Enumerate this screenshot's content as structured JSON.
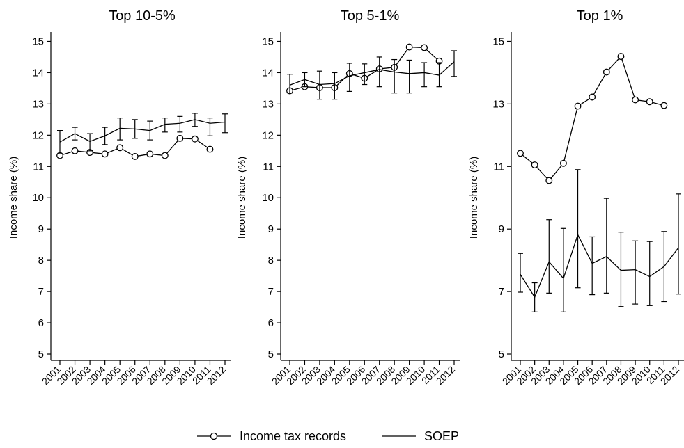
{
  "chart_data": [
    {
      "type": "line",
      "title": "Top 10-5%",
      "ylabel": "Income share (%)",
      "xlabel": "",
      "x": [
        2001,
        2002,
        2003,
        2004,
        2005,
        2006,
        2007,
        2008,
        2009,
        2010,
        2011,
        2012
      ],
      "ylim": [
        4.8,
        15.3
      ],
      "yticks": [
        5,
        6,
        7,
        8,
        9,
        10,
        11,
        12,
        13,
        14,
        15
      ],
      "series": [
        {
          "name": "Income tax records",
          "marker": "circle",
          "values": [
            11.35,
            11.5,
            11.45,
            11.4,
            11.6,
            11.32,
            11.4,
            11.35,
            11.9,
            11.88,
            11.55,
            null
          ]
        },
        {
          "name": "SOEP",
          "marker": "none",
          "values": [
            11.78,
            12.05,
            11.8,
            11.98,
            12.22,
            12.2,
            12.15,
            12.35,
            12.38,
            12.5,
            12.38,
            12.42
          ],
          "ci_low": [
            11.4,
            11.85,
            11.5,
            11.7,
            11.85,
            11.9,
            11.85,
            12.1,
            12.1,
            12.28,
            11.98,
            12.08
          ],
          "ci_high": [
            12.15,
            12.25,
            12.05,
            12.25,
            12.55,
            12.5,
            12.45,
            12.55,
            12.6,
            12.7,
            12.55,
            12.68
          ]
        }
      ]
    },
    {
      "type": "line",
      "title": "Top 5-1%",
      "ylabel": "Income share (%)",
      "xlabel": "",
      "x": [
        2001,
        2002,
        2003,
        2004,
        2005,
        2006,
        2007,
        2008,
        2009,
        2010,
        2011,
        2012
      ],
      "ylim": [
        4.8,
        15.3
      ],
      "yticks": [
        5,
        6,
        7,
        8,
        9,
        10,
        11,
        12,
        13,
        14,
        15
      ],
      "series": [
        {
          "name": "Income tax records",
          "marker": "circle",
          "values": [
            13.42,
            13.55,
            13.52,
            13.52,
            13.97,
            13.82,
            14.12,
            14.17,
            14.82,
            14.8,
            14.37,
            null
          ]
        },
        {
          "name": "SOEP",
          "marker": "none",
          "values": [
            13.6,
            13.78,
            13.62,
            13.65,
            13.9,
            14.0,
            14.1,
            14.02,
            13.97,
            14.0,
            13.92,
            14.35
          ],
          "ci_low": [
            13.35,
            13.55,
            13.15,
            13.15,
            13.4,
            13.62,
            13.55,
            13.35,
            13.35,
            13.55,
            13.55,
            13.88
          ],
          "ci_high": [
            13.95,
            14.0,
            14.05,
            14.0,
            14.3,
            14.28,
            14.5,
            14.42,
            14.4,
            14.32,
            14.32,
            14.7
          ]
        }
      ]
    },
    {
      "type": "line",
      "title": "Top 1%",
      "ylabel": "Income share (%)",
      "xlabel": "",
      "x": [
        2001,
        2002,
        2003,
        2004,
        2005,
        2006,
        2007,
        2008,
        2009,
        2010,
        2011,
        2012
      ],
      "ylim": [
        4.8,
        15.3
      ],
      "yticks": [
        5,
        7,
        9,
        11,
        13,
        15
      ],
      "series": [
        {
          "name": "Income tax records",
          "marker": "circle",
          "values": [
            11.42,
            11.05,
            10.55,
            11.1,
            12.93,
            13.22,
            14.02,
            14.52,
            13.13,
            13.07,
            12.95,
            null
          ]
        },
        {
          "name": "SOEP",
          "marker": "none",
          "values": [
            7.55,
            6.82,
            7.95,
            7.42,
            8.82,
            7.9,
            8.12,
            7.68,
            7.7,
            7.48,
            7.8,
            8.4
          ],
          "ci_low": [
            6.98,
            6.35,
            6.95,
            6.35,
            7.12,
            6.9,
            6.95,
            6.52,
            6.6,
            6.55,
            6.68,
            6.92
          ],
          "ci_high": [
            8.22,
            7.28,
            9.3,
            9.02,
            10.9,
            8.75,
            9.98,
            8.9,
            8.62,
            8.6,
            8.92,
            10.12
          ]
        }
      ]
    }
  ],
  "legend": {
    "placement": "bottom",
    "items": [
      {
        "label": "Income tax records",
        "marker": "circle"
      },
      {
        "label": "SOEP",
        "marker": "none"
      }
    ]
  }
}
